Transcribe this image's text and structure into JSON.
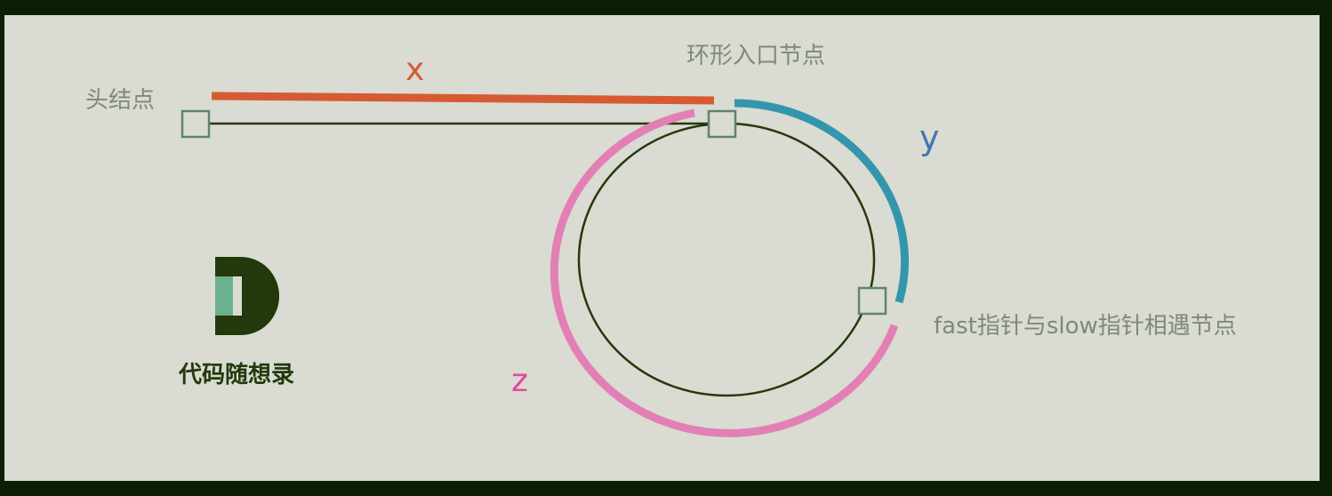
{
  "labels": {
    "head_node": "头结点",
    "entry_node": "环形入口节点",
    "meet_node": "fast指针与slow指针相遇节点",
    "x": "x",
    "y": "y",
    "z": "z"
  },
  "logo": {
    "letter": "D",
    "text": "代码随想录"
  },
  "colors": {
    "frame": "#0c1f06",
    "canvas": "#dadbd2",
    "x_segment": "#d65a32",
    "y_arc": "#3496ad",
    "z_arc": "#e280b6",
    "list_line": "#23390c",
    "node_border": "#5d8570"
  }
}
